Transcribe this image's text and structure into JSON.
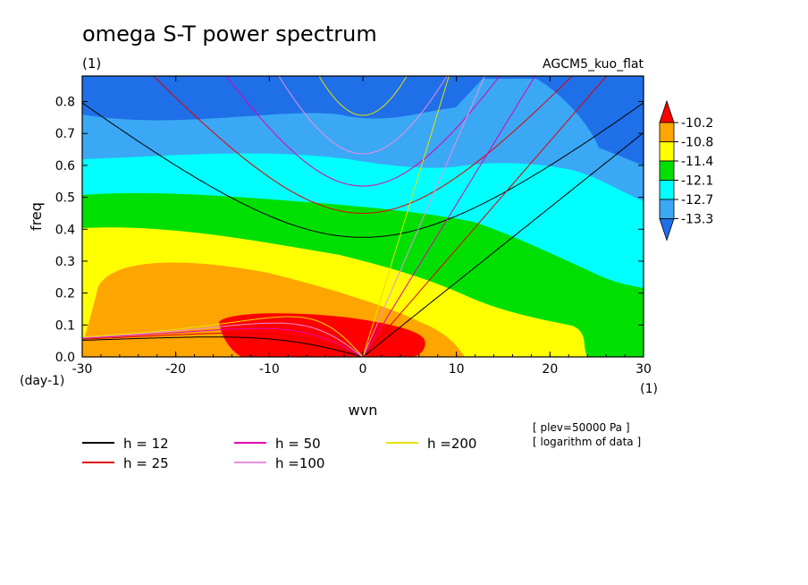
{
  "chart_data": {
    "type": "heatmap",
    "title": "omega S-T power spectrum",
    "subtitle_left": "(1)",
    "subtitle_right": "AGCM5_kuo_flat",
    "xlabel": "wvn",
    "ylabel": "freq",
    "x_unit": "(1)",
    "y_unit": "(day-1)",
    "xlim": [
      -30,
      30
    ],
    "ylim": [
      0,
      0.88
    ],
    "xticks": [
      -30,
      -20,
      -10,
      0,
      10,
      20,
      30
    ],
    "yticks": [
      0.0,
      0.1,
      0.2,
      0.3,
      0.4,
      0.5,
      0.6,
      0.7,
      0.8
    ],
    "notes": [
      "[ plev=50000 Pa ]",
      "[ logarithm of data ]"
    ],
    "colorbar": {
      "labels": [
        "-10.2",
        "-10.8",
        "-11.4",
        "-12.1",
        "-12.7",
        "-13.3"
      ],
      "colors": [
        "#1f6fe8",
        "#3aa8f5",
        "#00ffff",
        "#00e000",
        "#ffff00",
        "#ffa500",
        "#ff0000"
      ]
    },
    "dispersion_curves": [
      {
        "name": "h = 12",
        "h": 12,
        "color": "#000000"
      },
      {
        "name": "h = 25",
        "h": 25,
        "color": "#e00000"
      },
      {
        "name": "h = 50",
        "h": 50,
        "color": "#e000b0"
      },
      {
        "name": "h =100",
        "h": 100,
        "color": "#e890e0"
      },
      {
        "name": "h =200",
        "h": 200,
        "color": "#e8e000"
      }
    ]
  }
}
